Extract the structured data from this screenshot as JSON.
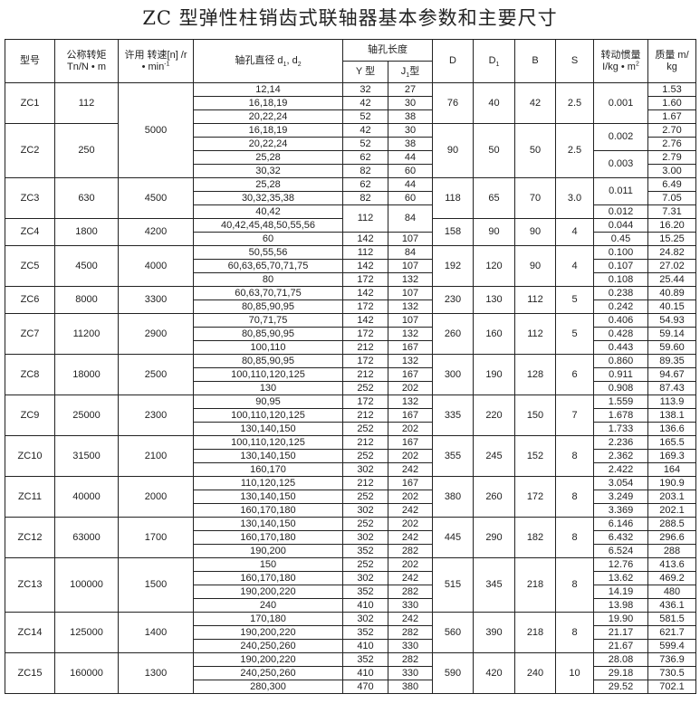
{
  "title": "ZC 型弹性柱销齿式联轴器基本参数和主要尺寸",
  "header": {
    "model": "型号",
    "torque": [
      "公称转矩",
      "Tn/N • m"
    ],
    "speed": [
      "许用 转速[n] /r",
      "• min",
      "-1"
    ],
    "bore": [
      "轴孔直径 d",
      "1",
      ", d",
      "2"
    ],
    "length": "轴孔长度",
    "y": "Y 型",
    "j": [
      "J",
      "1",
      "型"
    ],
    "D": "D",
    "D1": [
      "D",
      "1"
    ],
    "B": "B",
    "S": "S",
    "inertia": [
      "转动惯量",
      "I/kg • m",
      "2"
    ],
    "mass": [
      "质量 m/",
      "kg"
    ]
  },
  "groups": [
    {
      "model": "ZC1",
      "torque": "112",
      "speed": "5000",
      "D": "76",
      "D1": "40",
      "B": "42",
      "S": "2.5",
      "rows": [
        {
          "d": "12,14",
          "y": "32",
          "j": "27",
          "inertia": "0.001",
          "mass": "1.53"
        },
        {
          "d": "16,18,19",
          "y": "42",
          "j": "30",
          "inertia": null,
          "mass": "1.60"
        },
        {
          "d": "20,22,24",
          "y": "52",
          "j": "38",
          "inertia": null,
          "mass": "1.67"
        }
      ]
    },
    {
      "model": "ZC2",
      "torque": "250",
      "speed": null,
      "D": "90",
      "D1": "50",
      "B": "50",
      "S": "2.5",
      "rows": [
        {
          "d": "16,18,19",
          "y": "42",
          "j": "30",
          "inertia": "0.002",
          "mass": "2.70"
        },
        {
          "d": "20,22,24",
          "y": "52",
          "j": "38",
          "inertia": null,
          "mass": "2.76"
        },
        {
          "d": "25,28",
          "y": "62",
          "j": "44",
          "inertia": "0.003",
          "mass": "2.79"
        },
        {
          "d": "30,32",
          "y": "82",
          "j": "60",
          "inertia": null,
          "mass": "3.00"
        }
      ]
    },
    {
      "model": "ZC3",
      "torque": "630",
      "speed": "4500",
      "D": "118",
      "D1": "65",
      "B": "70",
      "S": "3.0",
      "rows": [
        {
          "d": "25,28",
          "y": "62",
          "j": "44",
          "inertia": "0.011",
          "mass": "6.49"
        },
        {
          "d": "30,32,35,38",
          "y": "82",
          "j": "60",
          "inertia": null,
          "mass": "7.05"
        },
        {
          "d": "40,42",
          "y": "112",
          "j": "84",
          "inertia": "0.012",
          "mass": "7.31"
        }
      ]
    },
    {
      "model": "ZC4",
      "torque": "1800",
      "speed": "4200",
      "D": "158",
      "D1": "90",
      "B": "90",
      "S": "4",
      "rows": [
        {
          "d": "40,42,45,48,50,55,56",
          "y": null,
          "j": null,
          "inertia": "0.044",
          "mass": "16.20"
        },
        {
          "d": "60",
          "y": "142",
          "j": "107",
          "inertia": "0.45",
          "mass": "15.25"
        }
      ]
    },
    {
      "model": "ZC5",
      "torque": "4500",
      "speed": "4000",
      "D": "192",
      "D1": "120",
      "B": "90",
      "S": "4",
      "rows": [
        {
          "d": "50,55,56",
          "y": "112",
          "j": "84",
          "inertia": "0.100",
          "mass": "24.82"
        },
        {
          "d": "60,63,65,70,71,75",
          "y": "142",
          "j": "107",
          "inertia": "0.107",
          "mass": "27.02"
        },
        {
          "d": "80",
          "y": "172",
          "j": "132",
          "inertia": "0.108",
          "mass": "25.44"
        }
      ]
    },
    {
      "model": "ZC6",
      "torque": "8000",
      "speed": "3300",
      "D": "230",
      "D1": "130",
      "B": "112",
      "S": "5",
      "rows": [
        {
          "d": "60,63,70,71,75",
          "y": "142",
          "j": "107",
          "inertia": "0.238",
          "mass": "40.89"
        },
        {
          "d": "80,85,90,95",
          "y": "172",
          "j": "132",
          "inertia": "0.242",
          "mass": "40.15"
        }
      ]
    },
    {
      "model": "ZC7",
      "torque": "11200",
      "speed": "2900",
      "D": "260",
      "D1": "160",
      "B": "112",
      "S": "5",
      "rows": [
        {
          "d": "70,71,75",
          "y": "142",
          "j": "107",
          "inertia": "0.406",
          "mass": "54.93"
        },
        {
          "d": "80,85,90,95",
          "y": "172",
          "j": "132",
          "inertia": "0.428",
          "mass": "59.14"
        },
        {
          "d": "100,110",
          "y": "212",
          "j": "167",
          "inertia": "0.443",
          "mass": "59.60"
        }
      ]
    },
    {
      "model": "ZC8",
      "torque": "18000",
      "speed": "2500",
      "D": "300",
      "D1": "190",
      "B": "128",
      "S": "6",
      "rows": [
        {
          "d": "80,85,90,95",
          "y": "172",
          "j": "132",
          "inertia": "0.860",
          "mass": "89.35"
        },
        {
          "d": "100,110,120,125",
          "y": "212",
          "j": "167",
          "inertia": "0.911",
          "mass": "94.67"
        },
        {
          "d": "130",
          "y": "252",
          "j": "202",
          "inertia": "0.908",
          "mass": "87.43"
        }
      ]
    },
    {
      "model": "ZC9",
      "torque": "25000",
      "speed": "2300",
      "D": "335",
      "D1": "220",
      "B": "150",
      "S": "7",
      "rows": [
        {
          "d": "90,95",
          "y": "172",
          "j": "132",
          "inertia": "1.559",
          "mass": "113.9"
        },
        {
          "d": "100,110,120,125",
          "y": "212",
          "j": "167",
          "inertia": "1.678",
          "mass": "138.1"
        },
        {
          "d": "130,140,150",
          "y": "252",
          "j": "202",
          "inertia": "1.733",
          "mass": "136.6"
        }
      ]
    },
    {
      "model": "ZC10",
      "torque": "31500",
      "speed": "2100",
      "D": "355",
      "D1": "245",
      "B": "152",
      "S": "8",
      "rows": [
        {
          "d": "100,110,120,125",
          "y": "212",
          "j": "167",
          "inertia": "2.236",
          "mass": "165.5"
        },
        {
          "d": "130,140,150",
          "y": "252",
          "j": "202",
          "inertia": "2.362",
          "mass": "169.3"
        },
        {
          "d": "160,170",
          "y": "302",
          "j": "242",
          "inertia": "2.422",
          "mass": "164"
        }
      ]
    },
    {
      "model": "ZC11",
      "torque": "40000",
      "speed": "2000",
      "D": "380",
      "D1": "260",
      "B": "172",
      "S": "8",
      "rows": [
        {
          "d": "110,120,125",
          "y": "212",
          "j": "167",
          "inertia": "3.054",
          "mass": "190.9"
        },
        {
          "d": "130,140,150",
          "y": "252",
          "j": "202",
          "inertia": "3.249",
          "mass": "203.1"
        },
        {
          "d": "160,170,180",
          "y": "302",
          "j": "242",
          "inertia": "3.369",
          "mass": "202.1"
        }
      ]
    },
    {
      "model": "ZC12",
      "torque": "63000",
      "speed": "1700",
      "D": "445",
      "D1": "290",
      "B": "182",
      "S": "8",
      "rows": [
        {
          "d": "130,140,150",
          "y": "252",
          "j": "202",
          "inertia": "6.146",
          "mass": "288.5"
        },
        {
          "d": "160,170,180",
          "y": "302",
          "j": "242",
          "inertia": "6.432",
          "mass": "296.6"
        },
        {
          "d": "190,200",
          "y": "352",
          "j": "282",
          "inertia": "6.524",
          "mass": "288"
        }
      ]
    },
    {
      "model": "ZC13",
      "torque": "100000",
      "speed": "1500",
      "D": "515",
      "D1": "345",
      "B": "218",
      "S": "8",
      "rows": [
        {
          "d": "150",
          "y": "252",
          "j": "202",
          "inertia": "12.76",
          "mass": "413.6"
        },
        {
          "d": "160,170,180",
          "y": "302",
          "j": "242",
          "inertia": "13.62",
          "mass": "469.2"
        },
        {
          "d": "190,200,220",
          "y": "352",
          "j": "282",
          "inertia": "14.19",
          "mass": "480"
        },
        {
          "d": "240",
          "y": "410",
          "j": "330",
          "inertia": "13.98",
          "mass": "436.1"
        }
      ]
    },
    {
      "model": "ZC14",
      "torque": "125000",
      "speed": "1400",
      "D": "560",
      "D1": "390",
      "B": "218",
      "S": "8",
      "rows": [
        {
          "d": "170,180",
          "y": "302",
          "j": "242",
          "inertia": "19.90",
          "mass": "581.5"
        },
        {
          "d": "190,200,220",
          "y": "352",
          "j": "282",
          "inertia": "21.17",
          "mass": "621.7"
        },
        {
          "d": "240,250,260",
          "y": "410",
          "j": "330",
          "inertia": "21.67",
          "mass": "599.4"
        }
      ]
    },
    {
      "model": "ZC15",
      "torque": "160000",
      "speed": "1300",
      "D": "590",
      "D1": "420",
      "B": "240",
      "S": "10",
      "rows": [
        {
          "d": "190,200,220",
          "y": "352",
          "j": "282",
          "inertia": "28.08",
          "mass": "736.9"
        },
        {
          "d": "240,250,260",
          "y": "410",
          "j": "330",
          "inertia": "29.18",
          "mass": "730.5"
        },
        {
          "d": "280,300",
          "y": "470",
          "j": "380",
          "inertia": "29.52",
          "mass": "702.1"
        }
      ]
    }
  ]
}
